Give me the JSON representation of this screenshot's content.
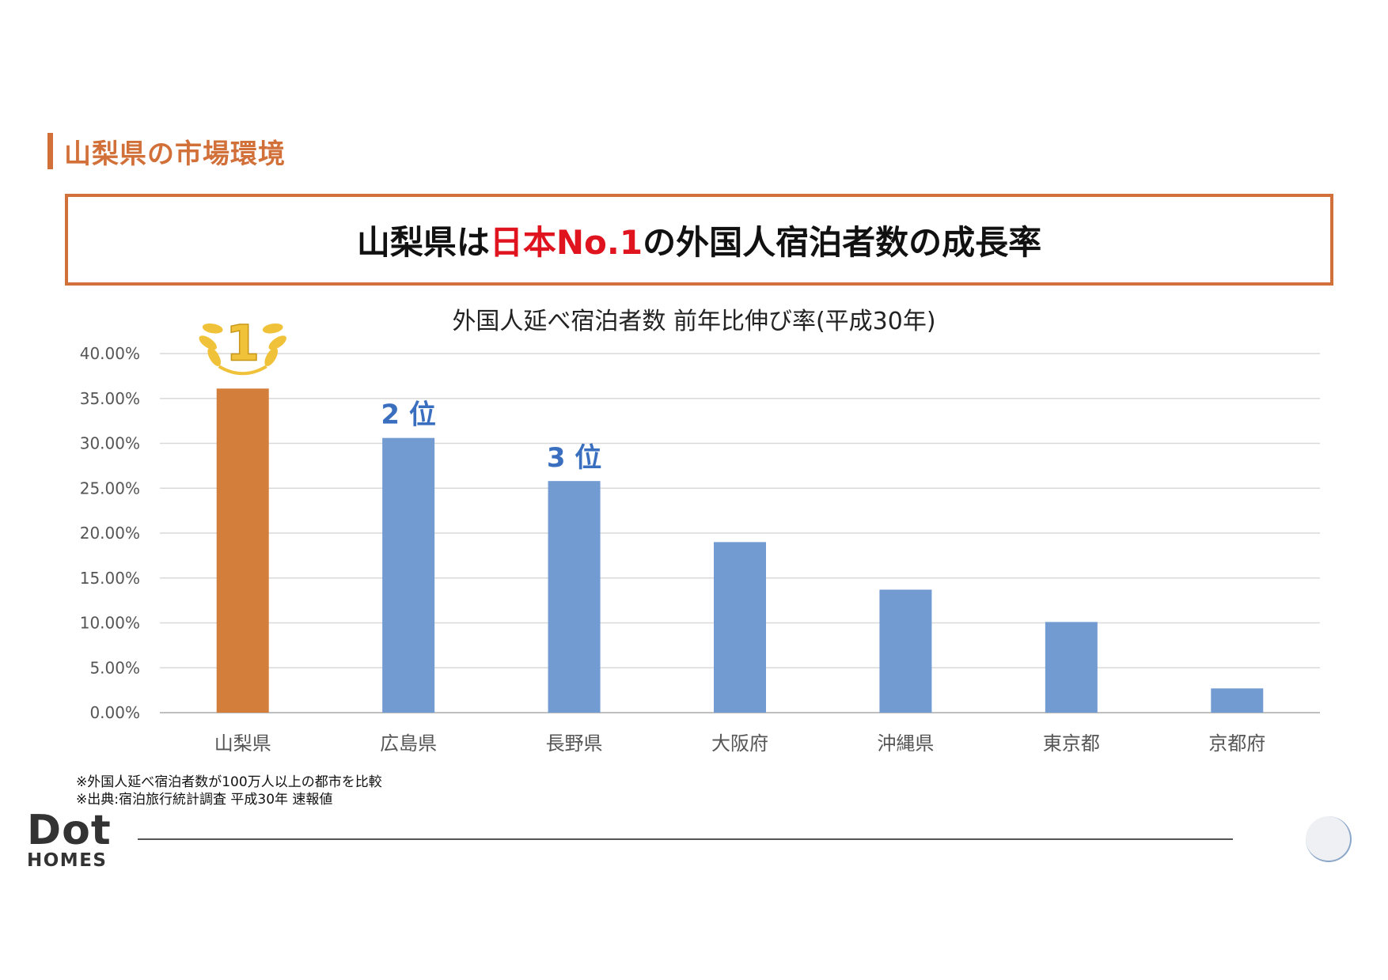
{
  "section": {
    "title": "山梨県の市場環境"
  },
  "headline": {
    "part1": "山梨県は",
    "accent": "日本No.1",
    "part2": "の外国人宿泊者数の成長率"
  },
  "chart_data": {
    "type": "bar",
    "title": "外国人延べ宿泊者数 前年比伸び率(平成30年)",
    "categories": [
      "山梨県",
      "広島県",
      "長野県",
      "大阪府",
      "沖縄県",
      "東京都",
      "京都府"
    ],
    "values": [
      36.1,
      30.6,
      25.8,
      19.0,
      13.7,
      10.1,
      2.7
    ],
    "ylim": [
      0,
      40
    ],
    "yticks": [
      "0.00%",
      "5.00%",
      "10.00%",
      "15.00%",
      "20.00%",
      "25.00%",
      "30.00%",
      "35.00%",
      "40.00%"
    ],
    "grid": true,
    "colors": {
      "highlight": "#d47e3b",
      "default": "#729bd2",
      "rank_label": "#3a6fbf",
      "medal": "#f0c23a"
    },
    "rank_labels": [
      {
        "category": "山梨県",
        "label": "1"
      },
      {
        "category": "広島県",
        "label": "2 位"
      },
      {
        "category": "長野県",
        "label": "3 位"
      }
    ]
  },
  "notes": [
    "※外国人延べ宿泊者数が100万人以上の都市を比較",
    "※出典:宿泊旅行統計調査 平成30年 速報値"
  ],
  "logo": {
    "main": "Dot",
    "sub": "HOMES"
  }
}
